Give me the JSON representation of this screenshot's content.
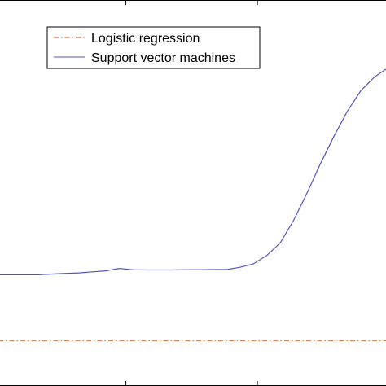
{
  "chart_data": {
    "type": "line",
    "title": "",
    "xlabel": "",
    "ylabel": "",
    "grid": false,
    "legend_placement": "top-left",
    "x": [
      0,
      1,
      2,
      3,
      4,
      5,
      6,
      7,
      8,
      9,
      10,
      11,
      12,
      13,
      14,
      15,
      16,
      17,
      18,
      19,
      20,
      21,
      22,
      23,
      24,
      25,
      26,
      27,
      28,
      29
    ],
    "series": [
      {
        "name": "Logistic regression",
        "color": "#d95319",
        "style": "dash-dot",
        "values": [
          0.2,
          0.2,
          0.2,
          0.2,
          0.2,
          0.2,
          0.2,
          0.2,
          0.2,
          0.2,
          0.2,
          0.2,
          0.2,
          0.2,
          0.2,
          0.2,
          0.2,
          0.2,
          0.2,
          0.2,
          0.2,
          0.2,
          0.2,
          0.2,
          0.2,
          0.2,
          0.2,
          0.2,
          0.2,
          0.2
        ]
      },
      {
        "name": "Support vector machines",
        "color": "#4f55c8",
        "style": "solid",
        "values": [
          0.49,
          0.49,
          0.49,
          0.49,
          0.493,
          0.496,
          0.498,
          0.503,
          0.507,
          0.518,
          0.512,
          0.511,
          0.511,
          0.511,
          0.512,
          0.512,
          0.513,
          0.513,
          0.523,
          0.538,
          0.575,
          0.63,
          0.73,
          0.85,
          0.98,
          1.1,
          1.21,
          1.3,
          1.36,
          1.4
        ]
      }
    ],
    "xlim": [
      0,
      29
    ],
    "ylim": [
      0,
      1.7
    ]
  }
}
